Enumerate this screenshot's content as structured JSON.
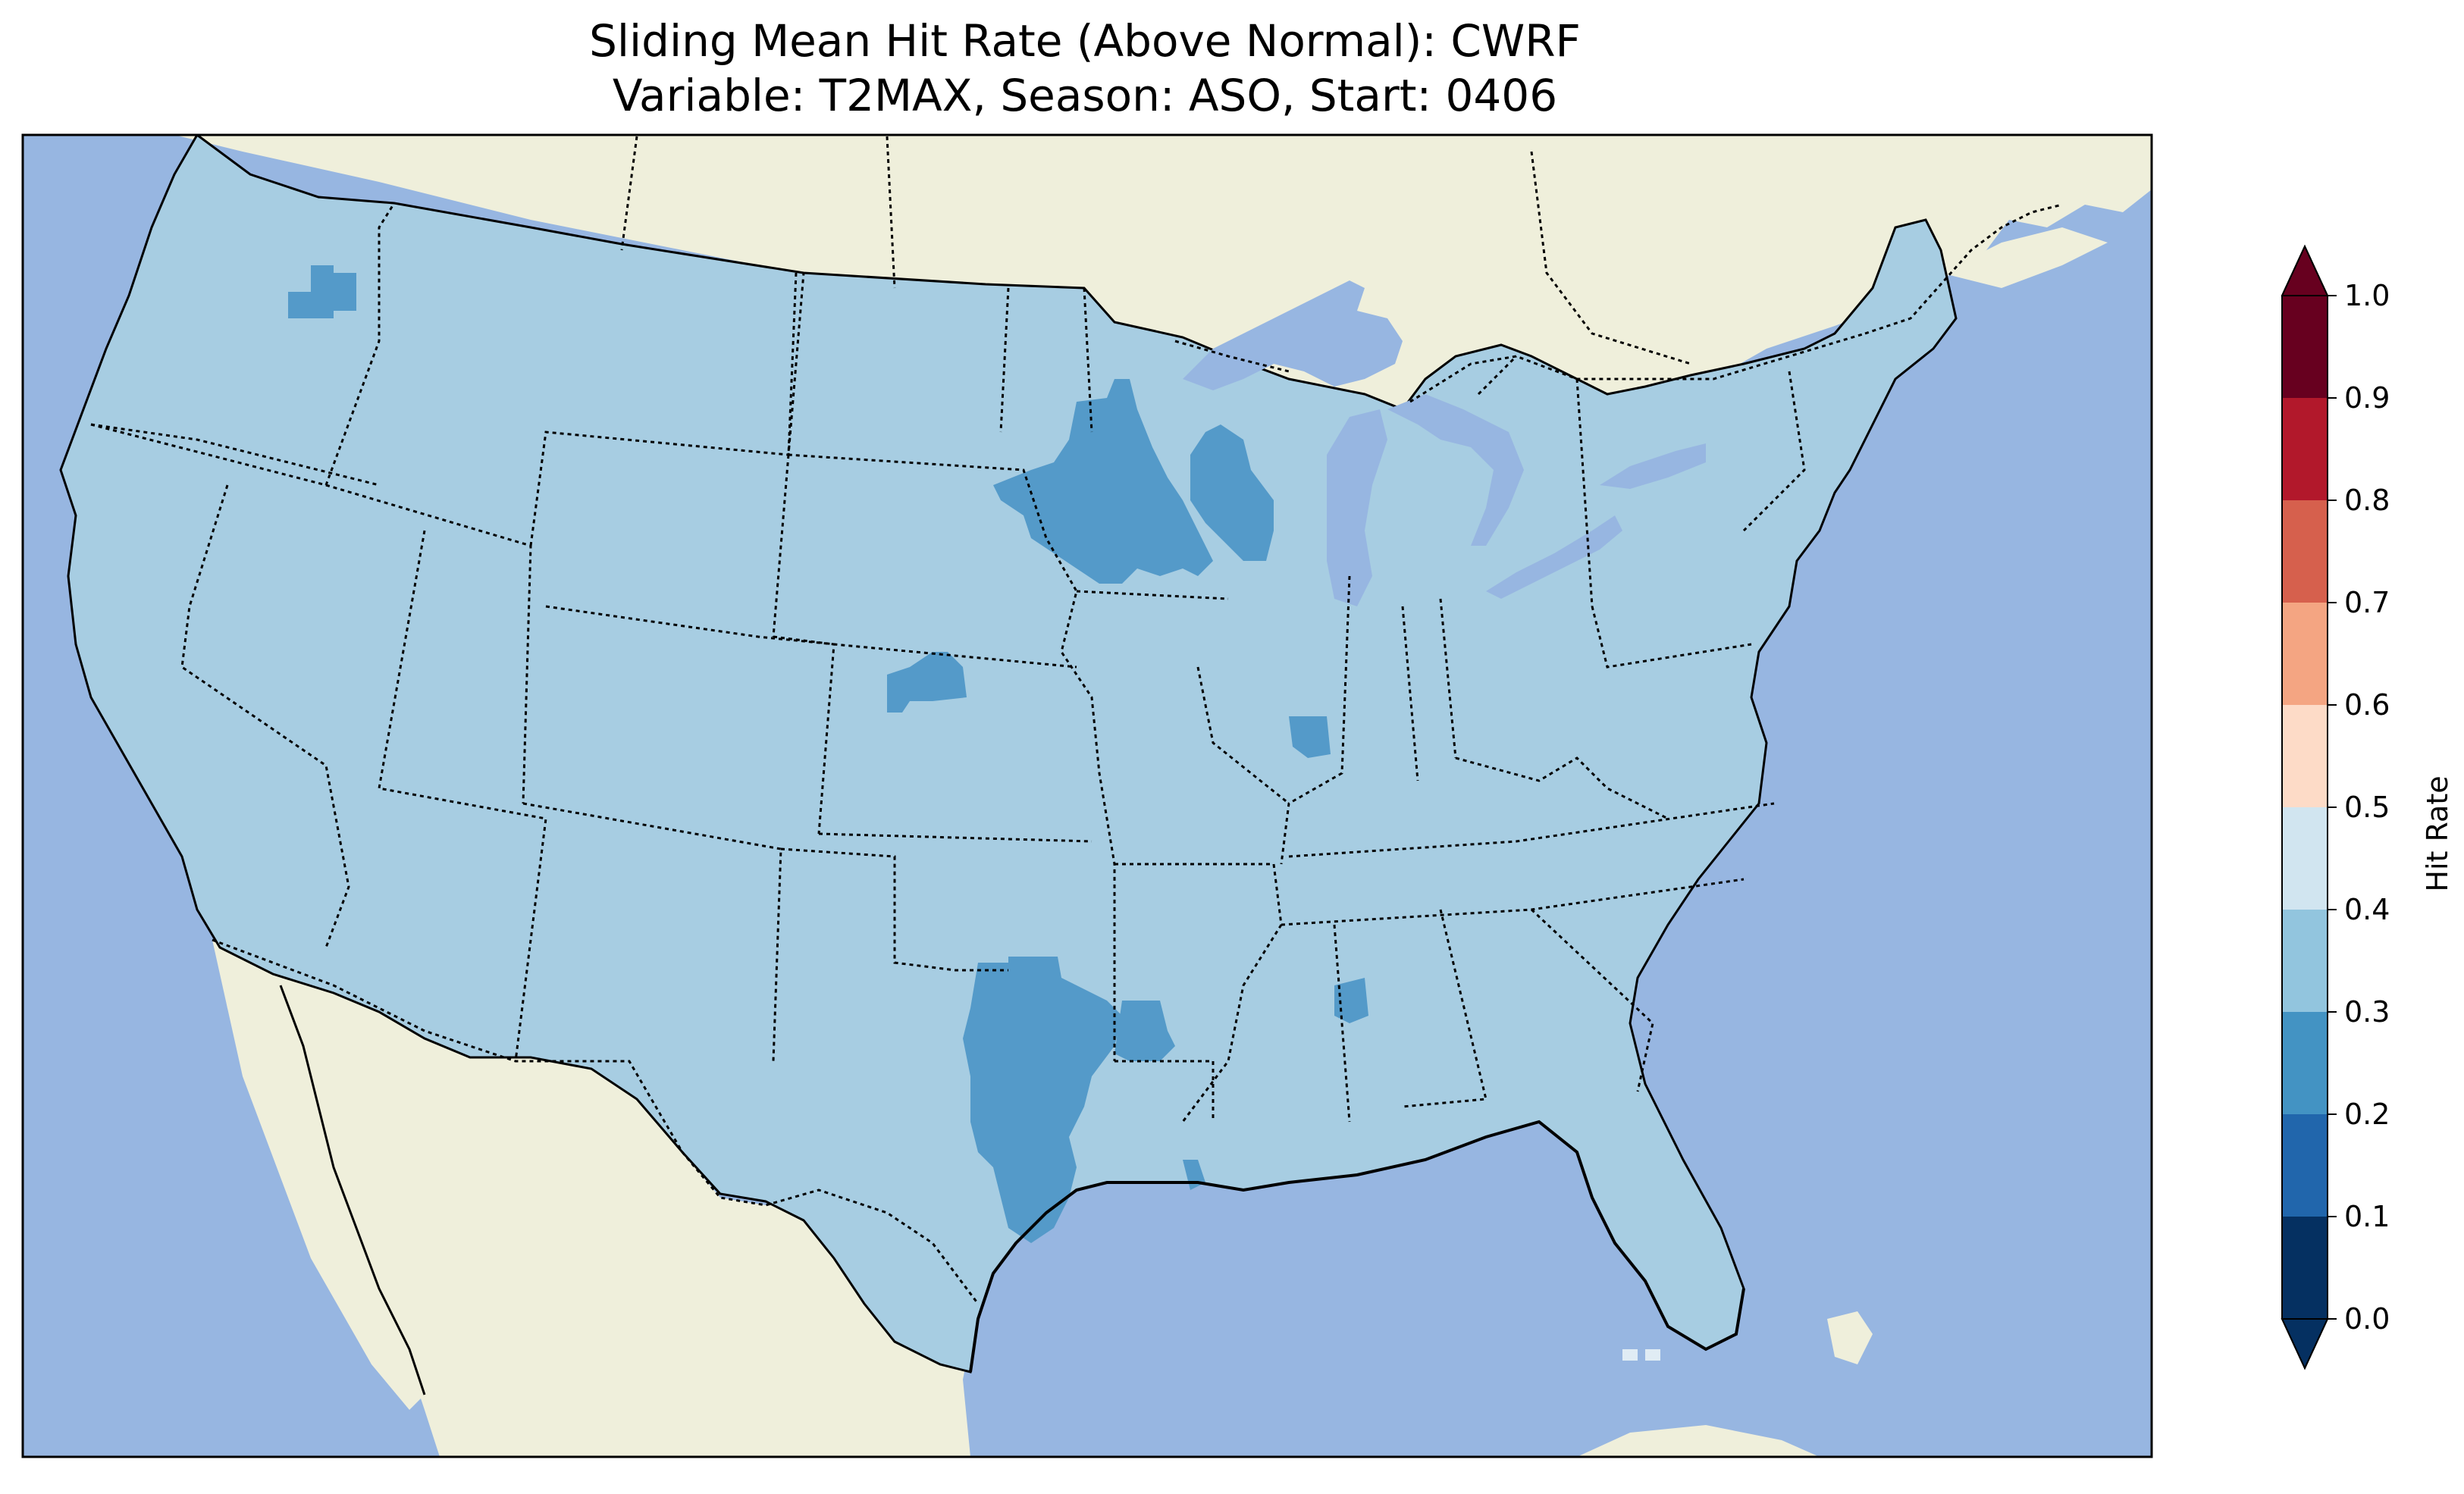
{
  "title": {
    "line1": "Sliding Mean Hit Rate (Above Normal): CWRF",
    "line2": "Variable: T2MAX, Season: ASO, Start: 0406"
  },
  "colors": {
    "ocean": "#97b6e1",
    "land": "#efefdb",
    "lakes": "#97b6e1",
    "coast": "#000000"
  },
  "colorbar": {
    "label": "Hit Rate",
    "ticks": [
      "0.0",
      "0.1",
      "0.2",
      "0.3",
      "0.4",
      "0.5",
      "0.6",
      "0.7",
      "0.8",
      "0.9",
      "1.0"
    ],
    "bins": [
      {
        "min": 0.0,
        "max": 0.1,
        "color": "#053061"
      },
      {
        "min": 0.1,
        "max": 0.2,
        "color": "#2166ac"
      },
      {
        "min": 0.2,
        "max": 0.3,
        "color": "#4393c3"
      },
      {
        "min": 0.3,
        "max": 0.4,
        "color": "#92c5de"
      },
      {
        "min": 0.4,
        "max": 0.5,
        "color": "#d1e5f0"
      },
      {
        "min": 0.5,
        "max": 0.6,
        "color": "#fddbc7"
      },
      {
        "min": 0.6,
        "max": 0.7,
        "color": "#f4a582"
      },
      {
        "min": 0.7,
        "max": 0.8,
        "color": "#d6604d"
      },
      {
        "min": 0.8,
        "max": 0.9,
        "color": "#b2182b"
      },
      {
        "min": 0.9,
        "max": 1.0,
        "color": "#67001f"
      }
    ],
    "extend": "both"
  },
  "chart_data": {
    "type": "heatmap",
    "title": "Sliding Mean Hit Rate (Above Normal): CWRF\nVariable: T2MAX, Season: ASO, Start: 0406",
    "colorbar_label": "Hit Rate",
    "vmin": 0.0,
    "vmax": 1.0,
    "levels": [
      0.0,
      0.1,
      0.2,
      0.3,
      0.4,
      0.5,
      0.6,
      0.7,
      0.8,
      0.9,
      1.0
    ],
    "domain": "Continental United States",
    "field": [
      {
        "region": "Continental United States (most grid cells)",
        "hit_rate_bin": [
          0.3,
          0.4
        ]
      },
      {
        "region": "Central Washington",
        "hit_rate_bin": [
          0.2,
          0.3
        ]
      },
      {
        "region": "Southern Minnesota / Northern Iowa",
        "hit_rate_bin": [
          0.2,
          0.3
        ]
      },
      {
        "region": "Western Wisconsin",
        "hit_rate_bin": [
          0.2,
          0.3
        ]
      },
      {
        "region": "Central Kansas",
        "hit_rate_bin": [
          0.2,
          0.3
        ]
      },
      {
        "region": "Central Illinois",
        "hit_rate_bin": [
          0.2,
          0.3
        ]
      },
      {
        "region": "Central and Northeast Texas",
        "hit_rate_bin": [
          0.2,
          0.3
        ]
      },
      {
        "region": "Northwest Louisiana",
        "hit_rate_bin": [
          0.2,
          0.3
        ]
      },
      {
        "region": "Central Mississippi",
        "hit_rate_bin": [
          0.2,
          0.3
        ]
      },
      {
        "region": "Florida Keys",
        "hit_rate_bin": [
          0.4,
          0.5
        ]
      }
    ]
  }
}
